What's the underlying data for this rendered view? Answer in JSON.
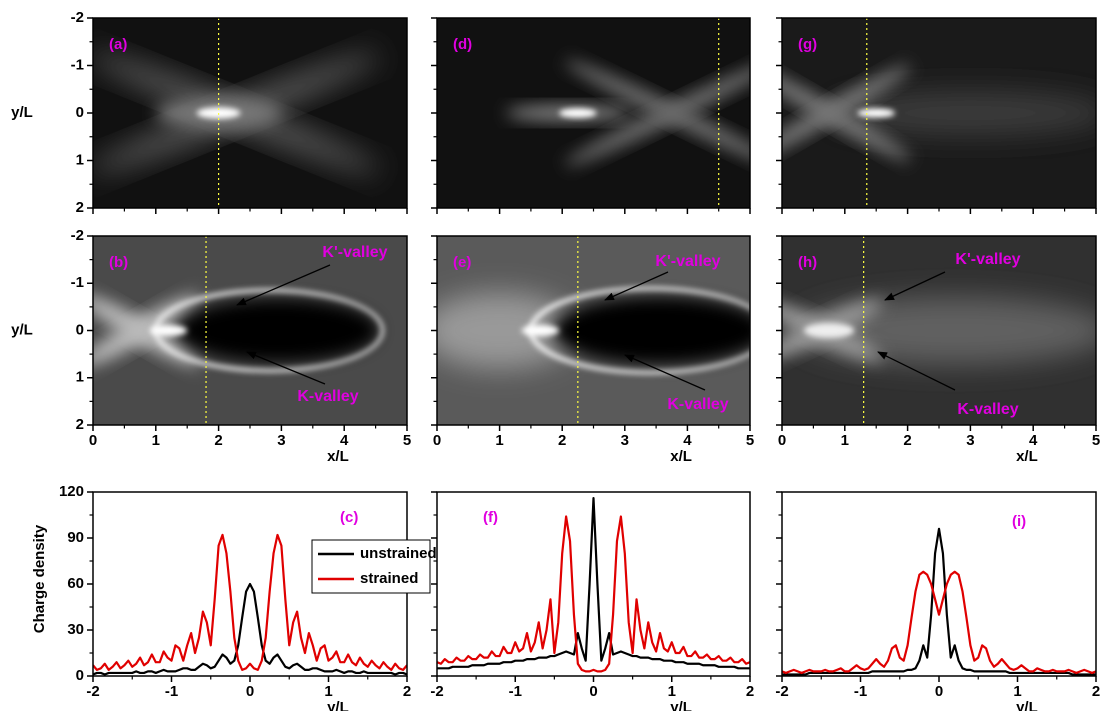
{
  "chart_data": [
    {
      "type": "heatmap",
      "label": "(a)",
      "ylabel": "y/L",
      "xlim": [
        0,
        5
      ],
      "ylim": [
        -2,
        2
      ],
      "y_inverted": true,
      "xticks": [
        0,
        1,
        2,
        3,
        4,
        5
      ],
      "yticks": [
        -2,
        -1,
        0,
        1,
        2
      ],
      "show_xtick_labels": false,
      "show_ytick_labels": true,
      "cut_x": 2
    },
    {
      "type": "heatmap",
      "label": "(d)",
      "xlim": [
        0,
        5
      ],
      "ylim": [
        -2,
        2
      ],
      "y_inverted": true,
      "xticks": [
        0,
        1,
        2,
        3,
        4,
        5
      ],
      "yticks": [
        -2,
        -1,
        0,
        1,
        2
      ],
      "show_xtick_labels": false,
      "show_ytick_labels": false,
      "cut_x": 4.5
    },
    {
      "type": "heatmap",
      "label": "(g)",
      "xlim": [
        0,
        5
      ],
      "ylim": [
        -2,
        2
      ],
      "y_inverted": true,
      "xticks": [
        0,
        1,
        2,
        3,
        4,
        5
      ],
      "yticks": [
        -2,
        -1,
        0,
        1,
        2
      ],
      "show_xtick_labels": false,
      "show_ytick_labels": false,
      "cut_x": 1.35
    },
    {
      "type": "heatmap",
      "label": "(b)",
      "ylabel": "y/L",
      "xlabel": "x/L",
      "xlim": [
        0,
        5
      ],
      "ylim": [
        -2,
        2
      ],
      "y_inverted": true,
      "xticks": [
        0,
        1,
        2,
        3,
        4,
        5
      ],
      "yticks": [
        -2,
        -1,
        0,
        1,
        2
      ],
      "show_xtick_labels": true,
      "show_ytick_labels": true,
      "cut_x": 1.8,
      "annotations": [
        "K'-valley",
        "K-valley"
      ]
    },
    {
      "type": "heatmap",
      "label": "(e)",
      "xlabel": "x/L",
      "xlim": [
        0,
        5
      ],
      "ylim": [
        -2,
        2
      ],
      "y_inverted": true,
      "xticks": [
        0,
        1,
        2,
        3,
        4,
        5
      ],
      "yticks": [
        -2,
        -1,
        0,
        1,
        2
      ],
      "show_xtick_labels": true,
      "show_ytick_labels": false,
      "cut_x": 2.25,
      "annotations": [
        "K'-valley",
        "K-valley"
      ]
    },
    {
      "type": "heatmap",
      "label": "(h)",
      "xlabel": "x/L",
      "xlim": [
        0,
        5
      ],
      "ylim": [
        -2,
        2
      ],
      "y_inverted": true,
      "xticks": [
        0,
        1,
        2,
        3,
        4,
        5
      ],
      "yticks": [
        -2,
        -1,
        0,
        1,
        2
      ],
      "show_xtick_labels": true,
      "show_ytick_labels": false,
      "cut_x": 1.3,
      "annotations": [
        "K'-valley",
        "K-valley"
      ]
    },
    {
      "type": "line",
      "label": "(c)",
      "ylabel": "Charge density",
      "xlabel": "y/L",
      "xlim": [
        -2,
        2
      ],
      "ylim": [
        0,
        120
      ],
      "xticks": [
        -2,
        -1,
        0,
        1,
        2
      ],
      "yticks": [
        0,
        30,
        60,
        90,
        120
      ],
      "show_xtick_labels": true,
      "show_ytick_labels": true,
      "legend": false,
      "x": [
        -2,
        -1.95,
        -1.9,
        -1.85,
        -1.8,
        -1.75,
        -1.7,
        -1.65,
        -1.6,
        -1.55,
        -1.5,
        -1.45,
        -1.4,
        -1.35,
        -1.3,
        -1.25,
        -1.2,
        -1.15,
        -1.1,
        -1.05,
        -1,
        -0.95,
        -0.9,
        -0.85,
        -0.8,
        -0.75,
        -0.7,
        -0.65,
        -0.6,
        -0.55,
        -0.5,
        -0.45,
        -0.4,
        -0.35,
        -0.3,
        -0.25,
        -0.2,
        -0.15,
        -0.1,
        -0.05,
        0,
        0.05,
        0.1,
        0.15,
        0.2,
        0.25,
        0.3,
        0.35,
        0.4,
        0.45,
        0.5,
        0.55,
        0.6,
        0.65,
        0.7,
        0.75,
        0.8,
        0.85,
        0.9,
        0.95,
        1,
        1.05,
        1.1,
        1.15,
        1.2,
        1.25,
        1.3,
        1.35,
        1.4,
        1.45,
        1.5,
        1.55,
        1.6,
        1.65,
        1.7,
        1.75,
        1.8,
        1.85,
        1.9,
        1.95,
        2
      ],
      "series": [
        {
          "color": "#000000",
          "values": [
            1,
            2,
            2,
            1,
            2,
            2,
            2,
            2,
            2,
            2,
            2,
            3,
            2,
            2,
            3,
            3,
            2,
            3,
            4,
            3,
            3,
            3,
            4,
            5,
            5,
            4,
            4,
            6,
            8,
            7,
            5,
            6,
            10,
            14,
            12,
            8,
            10,
            20,
            38,
            55,
            60,
            55,
            38,
            20,
            10,
            8,
            12,
            14,
            10,
            6,
            5,
            7,
            8,
            6,
            4,
            4,
            5,
            5,
            4,
            3,
            3,
            3,
            4,
            3,
            2,
            3,
            3,
            2,
            2,
            3,
            2,
            2,
            2,
            2,
            2,
            2,
            2,
            1,
            2,
            2,
            1
          ]
        },
        {
          "color": "#e00000",
          "values": [
            7,
            4,
            5,
            8,
            4,
            6,
            9,
            5,
            7,
            10,
            6,
            8,
            12,
            7,
            9,
            14,
            9,
            9,
            16,
            12,
            10,
            20,
            18,
            10,
            20,
            28,
            15,
            25,
            42,
            35,
            20,
            50,
            85,
            92,
            80,
            55,
            25,
            10,
            4,
            5,
            8,
            5,
            4,
            10,
            25,
            55,
            80,
            92,
            85,
            50,
            20,
            35,
            42,
            25,
            15,
            28,
            20,
            10,
            18,
            20,
            10,
            12,
            16,
            9,
            9,
            14,
            9,
            7,
            12,
            8,
            6,
            10,
            7,
            5,
            9,
            6,
            4,
            8,
            5,
            4,
            7
          ]
        }
      ]
    },
    {
      "type": "line",
      "label": "(f)",
      "xlabel": "y/L",
      "xlim": [
        -2,
        2
      ],
      "ylim": [
        0,
        120
      ],
      "xticks": [
        -2,
        -1,
        0,
        1,
        2
      ],
      "yticks": [
        0,
        30,
        60,
        90,
        120
      ],
      "show_xtick_labels": true,
      "show_ytick_labels": false,
      "legend": true,
      "x": [
        -2,
        -1.95,
        -1.9,
        -1.85,
        -1.8,
        -1.75,
        -1.7,
        -1.65,
        -1.6,
        -1.55,
        -1.5,
        -1.45,
        -1.4,
        -1.35,
        -1.3,
        -1.25,
        -1.2,
        -1.15,
        -1.1,
        -1.05,
        -1,
        -0.95,
        -0.9,
        -0.85,
        -0.8,
        -0.75,
        -0.7,
        -0.65,
        -0.6,
        -0.55,
        -0.5,
        -0.45,
        -0.4,
        -0.35,
        -0.3,
        -0.25,
        -0.2,
        -0.15,
        -0.1,
        -0.05,
        0,
        0.05,
        0.1,
        0.15,
        0.2,
        0.25,
        0.3,
        0.35,
        0.4,
        0.45,
        0.5,
        0.55,
        0.6,
        0.65,
        0.7,
        0.75,
        0.8,
        0.85,
        0.9,
        0.95,
        1,
        1.05,
        1.1,
        1.15,
        1.2,
        1.25,
        1.3,
        1.35,
        1.4,
        1.45,
        1.5,
        1.55,
        1.6,
        1.65,
        1.7,
        1.75,
        1.8,
        1.85,
        1.9,
        1.95,
        2
      ],
      "series": [
        {
          "name": "unstrained",
          "color": "#000000",
          "values": [
            5,
            5,
            5,
            5,
            6,
            6,
            6,
            6,
            6,
            7,
            7,
            7,
            7,
            8,
            8,
            8,
            8,
            9,
            9,
            9,
            10,
            10,
            10,
            11,
            11,
            11,
            12,
            12,
            12,
            13,
            13,
            14,
            15,
            16,
            15,
            14,
            28,
            18,
            10,
            60,
            116,
            60,
            10,
            18,
            28,
            14,
            15,
            16,
            15,
            14,
            13,
            13,
            12,
            12,
            12,
            11,
            11,
            11,
            10,
            10,
            10,
            9,
            9,
            9,
            8,
            8,
            8,
            8,
            7,
            7,
            7,
            7,
            6,
            6,
            6,
            6,
            6,
            5,
            5,
            5,
            5
          ]
        },
        {
          "name": "strained",
          "color": "#e00000",
          "values": [
            9,
            8,
            11,
            9,
            9,
            12,
            10,
            10,
            13,
            11,
            11,
            14,
            12,
            12,
            16,
            13,
            13,
            19,
            15,
            15,
            22,
            16,
            18,
            28,
            16,
            22,
            35,
            18,
            30,
            50,
            15,
            35,
            80,
            104,
            88,
            40,
            8,
            4,
            3,
            3,
            4,
            3,
            3,
            4,
            8,
            40,
            88,
            104,
            80,
            35,
            15,
            50,
            30,
            18,
            35,
            22,
            16,
            28,
            18,
            16,
            22,
            15,
            15,
            19,
            13,
            13,
            16,
            12,
            12,
            14,
            11,
            11,
            13,
            10,
            10,
            12,
            9,
            9,
            11,
            8,
            9
          ]
        }
      ]
    },
    {
      "type": "line",
      "label": "(i)",
      "xlabel": "y/L",
      "xlim": [
        -2,
        2
      ],
      "ylim": [
        0,
        120
      ],
      "xticks": [
        -2,
        -1,
        0,
        1,
        2
      ],
      "yticks": [
        0,
        30,
        60,
        90,
        120
      ],
      "show_xtick_labels": true,
      "show_ytick_labels": false,
      "legend": false,
      "x": [
        -2,
        -1.95,
        -1.9,
        -1.85,
        -1.8,
        -1.75,
        -1.7,
        -1.65,
        -1.6,
        -1.55,
        -1.5,
        -1.45,
        -1.4,
        -1.35,
        -1.3,
        -1.25,
        -1.2,
        -1.15,
        -1.1,
        -1.05,
        -1,
        -0.95,
        -0.9,
        -0.85,
        -0.8,
        -0.75,
        -0.7,
        -0.65,
        -0.6,
        -0.55,
        -0.5,
        -0.45,
        -0.4,
        -0.35,
        -0.3,
        -0.25,
        -0.2,
        -0.15,
        -0.1,
        -0.05,
        0,
        0.05,
        0.1,
        0.15,
        0.2,
        0.25,
        0.3,
        0.35,
        0.4,
        0.45,
        0.5,
        0.55,
        0.6,
        0.65,
        0.7,
        0.75,
        0.8,
        0.85,
        0.9,
        0.95,
        1,
        1.05,
        1.1,
        1.15,
        1.2,
        1.25,
        1.3,
        1.35,
        1.4,
        1.45,
        1.5,
        1.55,
        1.6,
        1.65,
        1.7,
        1.75,
        1.8,
        1.85,
        1.9,
        1.95,
        2
      ],
      "series": [
        {
          "color": "#000000",
          "values": [
            1,
            1,
            1,
            1,
            1,
            1,
            1,
            2,
            2,
            2,
            2,
            2,
            2,
            2,
            2,
            2,
            2,
            2,
            2,
            2,
            2,
            2,
            2,
            3,
            3,
            3,
            3,
            3,
            3,
            3,
            3,
            3,
            4,
            4,
            5,
            10,
            20,
            12,
            40,
            80,
            96,
            80,
            40,
            12,
            20,
            10,
            5,
            4,
            4,
            3,
            3,
            3,
            3,
            3,
            3,
            3,
            3,
            3,
            2,
            2,
            2,
            2,
            2,
            2,
            2,
            2,
            2,
            2,
            2,
            2,
            2,
            2,
            2,
            2,
            1,
            1,
            1,
            1,
            1,
            1,
            1
          ]
        },
        {
          "color": "#e00000",
          "values": [
            3,
            2,
            3,
            4,
            3,
            2,
            3,
            4,
            3,
            3,
            3,
            4,
            3,
            3,
            4,
            5,
            3,
            3,
            5,
            7,
            5,
            4,
            5,
            8,
            11,
            8,
            6,
            10,
            18,
            20,
            12,
            10,
            20,
            38,
            55,
            66,
            68,
            66,
            60,
            50,
            40,
            50,
            60,
            66,
            68,
            66,
            55,
            38,
            20,
            10,
            12,
            20,
            18,
            10,
            6,
            8,
            11,
            8,
            5,
            4,
            5,
            7,
            5,
            3,
            3,
            5,
            4,
            3,
            3,
            4,
            3,
            3,
            3,
            4,
            3,
            2,
            3,
            4,
            3,
            2,
            3
          ]
        }
      ]
    }
  ]
}
